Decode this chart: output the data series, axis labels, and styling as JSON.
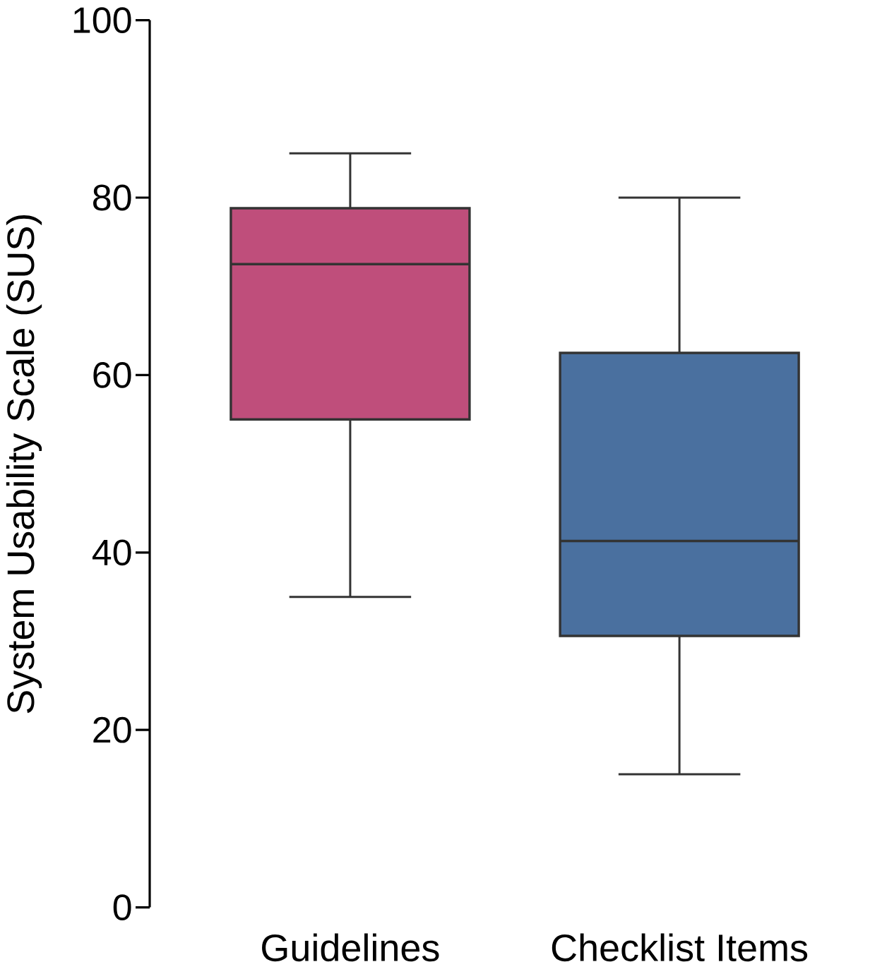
{
  "chart_data": {
    "type": "box",
    "ylabel": "System Usability Scale (SUS)",
    "categories": [
      "Guidelines",
      "Checklist Items"
    ],
    "ylim": [
      0,
      100
    ],
    "yticks": [
      0,
      20,
      40,
      60,
      80,
      100
    ],
    "colors": [
      "#bf4e7b",
      "#4a709f"
    ],
    "boxes": [
      {
        "low": 35,
        "q1": 55,
        "median": 72.5,
        "q3": 78.8,
        "high": 85
      },
      {
        "low": 15,
        "q1": 30.6,
        "median": 41.3,
        "q3": 62.5,
        "high": 80
      }
    ]
  }
}
